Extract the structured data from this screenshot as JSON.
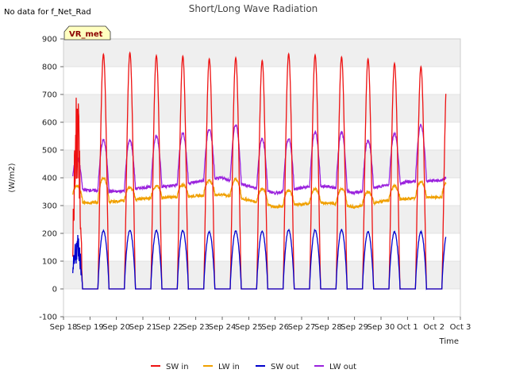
{
  "header": {
    "title": "Short/Long Wave Radiation",
    "no_data_note": "No data for f_Net_Rad",
    "badge": "VR_met"
  },
  "chart_data": {
    "type": "line",
    "title": "Short/Long Wave Radiation",
    "xlabel": "Time",
    "ylabel": "(W/m2)",
    "ylim": [
      -100,
      900
    ],
    "yticks": [
      -100,
      0,
      100,
      200,
      300,
      400,
      500,
      600,
      700,
      800,
      900
    ],
    "xlim": [
      0,
      15
    ],
    "xtick_labels": [
      "Sep 18",
      "Sep 19",
      "Sep 20",
      "Sep 21",
      "Sep 22",
      "Sep 23",
      "Sep 24",
      "Sep 25",
      "Sep 26",
      "Sep 27",
      "Sep 28",
      "Sep 29",
      "Sep 30",
      "Oct 1",
      "Oct 2",
      "Oct 3"
    ],
    "grid": true,
    "legend_position": "bottom",
    "series": [
      {
        "name": "SW in",
        "color": "#ee1111",
        "data_start_day": 0.35,
        "data_end_day": 14.45,
        "daily_peak": [
          730,
          845,
          850,
          840,
          838,
          828,
          832,
          822,
          846,
          842,
          835,
          828,
          812,
          800
        ]
      },
      {
        "name": "LW in",
        "color": "#f0a000",
        "data_start_day": 0.35,
        "data_end_day": 14.45,
        "daily_min": [
          320,
          310,
          315,
          325,
          330,
          335,
          340,
          320,
          295,
          305,
          310,
          295,
          315,
          325,
          330
        ],
        "daily_max": [
          370,
          400,
          365,
          370,
          375,
          390,
          395,
          360,
          355,
          360,
          360,
          350,
          370,
          385,
          385
        ]
      },
      {
        "name": "SW out",
        "color": "#0000cc",
        "data_start_day": 0.35,
        "data_end_day": 14.45,
        "daily_peak": [
          185,
          210,
          210,
          210,
          210,
          205,
          208,
          207,
          212,
          212,
          212,
          206,
          205,
          205
        ]
      },
      {
        "name": "LW out",
        "color": "#9a22dd",
        "data_start_day": 0.35,
        "data_end_day": 14.45,
        "daily_min": [
          365,
          355,
          350,
          365,
          370,
          385,
          400,
          370,
          345,
          365,
          370,
          345,
          370,
          385,
          390
        ],
        "daily_max": [
          475,
          535,
          535,
          550,
          560,
          575,
          590,
          540,
          540,
          565,
          565,
          535,
          560,
          590,
          400
        ]
      }
    ]
  }
}
